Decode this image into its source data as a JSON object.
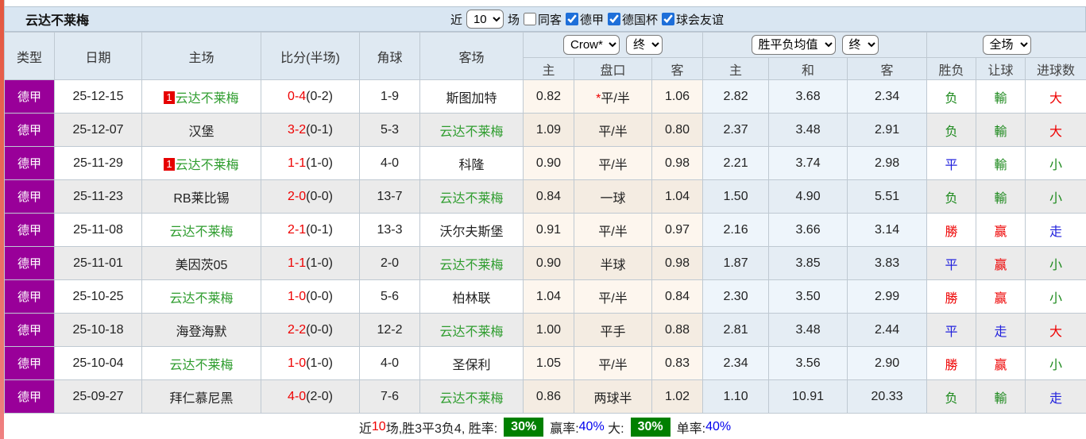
{
  "title": "云达不莱梅",
  "colors": {
    "win": "#ee0000",
    "draw": "#2222dd",
    "loss": "#1e8a1e",
    "team_highlight": "#2f9d2f",
    "league_badge_bg": "#990099",
    "rate_box_bg": "#008000",
    "accent_strip": "#e86a5a"
  },
  "filter_bar": {
    "recent_label": "近",
    "recent_value": "10",
    "games_label": "场",
    "same_venue_label": "同客",
    "same_venue_checked": false,
    "leagues": [
      {
        "label": "德甲",
        "checked": true
      },
      {
        "label": "德国杯",
        "checked": true
      },
      {
        "label": "球会友谊",
        "checked": true
      }
    ]
  },
  "header": {
    "left_columns": [
      "类型",
      "日期",
      "主场",
      "比分(半场)",
      "角球",
      "客场"
    ],
    "crow_group": {
      "company": "Crow*",
      "stage": "终",
      "subcols": [
        "主",
        "盘口",
        "客"
      ]
    },
    "avg_group": {
      "company": "胜平负均值",
      "stage": "终",
      "subcols": [
        "主",
        "和",
        "客"
      ]
    },
    "result_group": {
      "scope": "全场",
      "subcols": [
        "胜负",
        "让球",
        "进球数"
      ]
    }
  },
  "rows": [
    {
      "league": "德甲",
      "date": "25-12-15",
      "home": {
        "rank": "1",
        "name": "云达不莱梅",
        "highlight": true
      },
      "score": {
        "full": "0-4",
        "half": "(0-2)"
      },
      "corners": "1-9",
      "away": {
        "name": "斯图加特",
        "highlight": false
      },
      "crow": {
        "home": "0.82",
        "star": "*",
        "handicap": "平/半",
        "away": "1.06"
      },
      "avg": {
        "home": "2.82",
        "draw": "3.68",
        "away": "2.34"
      },
      "result": {
        "wdl": {
          "t": "负",
          "c": "loss"
        },
        "handicap": {
          "t": "輸",
          "c": "loss"
        },
        "goals": {
          "t": "大",
          "c": "win"
        }
      }
    },
    {
      "league": "德甲",
      "date": "25-12-07",
      "home": {
        "rank": "",
        "name": "汉堡",
        "highlight": false
      },
      "score": {
        "full": "3-2",
        "half": "(0-1)"
      },
      "corners": "5-3",
      "away": {
        "name": "云达不莱梅",
        "highlight": true
      },
      "crow": {
        "home": "1.09",
        "star": "",
        "handicap": "平/半",
        "away": "0.80"
      },
      "avg": {
        "home": "2.37",
        "draw": "3.48",
        "away": "2.91"
      },
      "result": {
        "wdl": {
          "t": "负",
          "c": "loss"
        },
        "handicap": {
          "t": "輸",
          "c": "loss"
        },
        "goals": {
          "t": "大",
          "c": "win"
        }
      }
    },
    {
      "league": "德甲",
      "date": "25-11-29",
      "home": {
        "rank": "1",
        "name": "云达不莱梅",
        "highlight": true
      },
      "score": {
        "full": "1-1",
        "half": "(1-0)"
      },
      "corners": "4-0",
      "away": {
        "name": "科隆",
        "highlight": false
      },
      "crow": {
        "home": "0.90",
        "star": "",
        "handicap": "平/半",
        "away": "0.98"
      },
      "avg": {
        "home": "2.21",
        "draw": "3.74",
        "away": "2.98"
      },
      "result": {
        "wdl": {
          "t": "平",
          "c": "draw"
        },
        "handicap": {
          "t": "輸",
          "c": "loss"
        },
        "goals": {
          "t": "小",
          "c": "loss"
        }
      }
    },
    {
      "league": "德甲",
      "date": "25-11-23",
      "home": {
        "rank": "",
        "name": "RB莱比锡",
        "highlight": false
      },
      "score": {
        "full": "2-0",
        "half": "(0-0)"
      },
      "corners": "13-7",
      "away": {
        "name": "云达不莱梅",
        "highlight": true
      },
      "crow": {
        "home": "0.84",
        "star": "",
        "handicap": "一球",
        "away": "1.04"
      },
      "avg": {
        "home": "1.50",
        "draw": "4.90",
        "away": "5.51"
      },
      "result": {
        "wdl": {
          "t": "负",
          "c": "loss"
        },
        "handicap": {
          "t": "輸",
          "c": "loss"
        },
        "goals": {
          "t": "小",
          "c": "loss"
        }
      }
    },
    {
      "league": "德甲",
      "date": "25-11-08",
      "home": {
        "rank": "",
        "name": "云达不莱梅",
        "highlight": true
      },
      "score": {
        "full": "2-1",
        "half": "(0-1)"
      },
      "corners": "13-3",
      "away": {
        "name": "沃尔夫斯堡",
        "highlight": false
      },
      "crow": {
        "home": "0.91",
        "star": "",
        "handicap": "平/半",
        "away": "0.97"
      },
      "avg": {
        "home": "2.16",
        "draw": "3.66",
        "away": "3.14"
      },
      "result": {
        "wdl": {
          "t": "勝",
          "c": "win"
        },
        "handicap": {
          "t": "赢",
          "c": "win"
        },
        "goals": {
          "t": "走",
          "c": "draw"
        }
      }
    },
    {
      "league": "德甲",
      "date": "25-11-01",
      "home": {
        "rank": "",
        "name": "美因茨05",
        "highlight": false
      },
      "score": {
        "full": "1-1",
        "half": "(1-0)"
      },
      "corners": "2-0",
      "away": {
        "name": "云达不莱梅",
        "highlight": true
      },
      "crow": {
        "home": "0.90",
        "star": "",
        "handicap": "半球",
        "away": "0.98"
      },
      "avg": {
        "home": "1.87",
        "draw": "3.85",
        "away": "3.83"
      },
      "result": {
        "wdl": {
          "t": "平",
          "c": "draw"
        },
        "handicap": {
          "t": "赢",
          "c": "win"
        },
        "goals": {
          "t": "小",
          "c": "loss"
        }
      }
    },
    {
      "league": "德甲",
      "date": "25-10-25",
      "home": {
        "rank": "",
        "name": "云达不莱梅",
        "highlight": true
      },
      "score": {
        "full": "1-0",
        "half": "(0-0)"
      },
      "corners": "5-6",
      "away": {
        "name": "柏林联",
        "highlight": false
      },
      "crow": {
        "home": "1.04",
        "star": "",
        "handicap": "平/半",
        "away": "0.84"
      },
      "avg": {
        "home": "2.30",
        "draw": "3.50",
        "away": "2.99"
      },
      "result": {
        "wdl": {
          "t": "勝",
          "c": "win"
        },
        "handicap": {
          "t": "赢",
          "c": "win"
        },
        "goals": {
          "t": "小",
          "c": "loss"
        }
      }
    },
    {
      "league": "德甲",
      "date": "25-10-18",
      "home": {
        "rank": "",
        "name": "海登海默",
        "highlight": false
      },
      "score": {
        "full": "2-2",
        "half": "(0-0)"
      },
      "corners": "12-2",
      "away": {
        "name": "云达不莱梅",
        "highlight": true
      },
      "crow": {
        "home": "1.00",
        "star": "",
        "handicap": "平手",
        "away": "0.88"
      },
      "avg": {
        "home": "2.81",
        "draw": "3.48",
        "away": "2.44"
      },
      "result": {
        "wdl": {
          "t": "平",
          "c": "draw"
        },
        "handicap": {
          "t": "走",
          "c": "draw"
        },
        "goals": {
          "t": "大",
          "c": "win"
        }
      }
    },
    {
      "league": "德甲",
      "date": "25-10-04",
      "home": {
        "rank": "",
        "name": "云达不莱梅",
        "highlight": true
      },
      "score": {
        "full": "1-0",
        "half": "(1-0)"
      },
      "corners": "4-0",
      "away": {
        "name": "圣保利",
        "highlight": false
      },
      "crow": {
        "home": "1.05",
        "star": "",
        "handicap": "平/半",
        "away": "0.83"
      },
      "avg": {
        "home": "2.34",
        "draw": "3.56",
        "away": "2.90"
      },
      "result": {
        "wdl": {
          "t": "勝",
          "c": "win"
        },
        "handicap": {
          "t": "赢",
          "c": "win"
        },
        "goals": {
          "t": "小",
          "c": "loss"
        }
      }
    },
    {
      "league": "德甲",
      "date": "25-09-27",
      "home": {
        "rank": "",
        "name": "拜仁慕尼黑",
        "highlight": false
      },
      "score": {
        "full": "4-0",
        "half": "(2-0)"
      },
      "corners": "7-6",
      "away": {
        "name": "云达不莱梅",
        "highlight": true
      },
      "crow": {
        "home": "0.86",
        "star": "",
        "handicap": "两球半",
        "away": "1.02"
      },
      "avg": {
        "home": "1.10",
        "draw": "10.91",
        "away": "20.33"
      },
      "result": {
        "wdl": {
          "t": "负",
          "c": "loss"
        },
        "handicap": {
          "t": "輸",
          "c": "loss"
        },
        "goals": {
          "t": "走",
          "c": "draw"
        }
      }
    }
  ],
  "footer": {
    "prefix": "近",
    "recent_count": "10",
    "summary": "场,胜3平3负4, 胜率:",
    "win_rate": "30%",
    "handicap_label": "赢率:",
    "handicap_rate": "40%",
    "big_label": "大:",
    "big_rate": "30%",
    "single_label": "单率:",
    "single_rate": "40%"
  }
}
